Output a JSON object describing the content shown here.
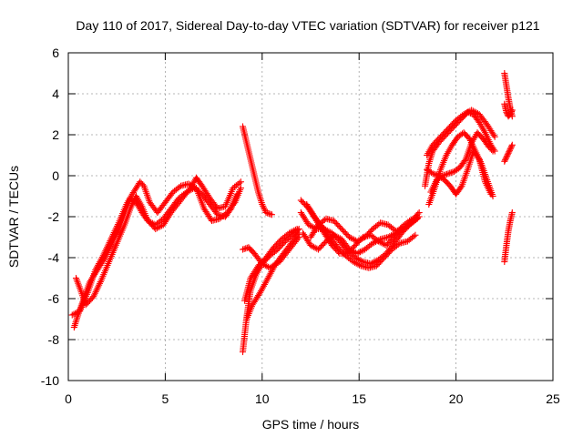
{
  "chart_data": {
    "type": "scatter",
    "title": "Day 110 of 2017, Sidereal Day-to-day VTEC variation (SDTVAR) for receiver p121",
    "xlabel": "GPS time / hours",
    "ylabel": "SDTVAR / TECUs",
    "xlim": [
      0,
      25
    ],
    "ylim": [
      -10,
      6
    ],
    "xticks": [
      "0",
      "5",
      "10",
      "15",
      "20",
      "25"
    ],
    "yticks": [
      "-10",
      "-8",
      "-6",
      "-4",
      "-2",
      "0",
      "2",
      "4",
      "6"
    ],
    "grid": true,
    "legend": "none",
    "marker": "plus",
    "color": "#ff0000",
    "series": [
      {
        "name": "",
        "tracks": [
          [
            [
              0.3,
              -7.4
            ],
            [
              0.5,
              -6.8
            ],
            [
              0.8,
              -6.0
            ],
            [
              1.1,
              -5.2
            ],
            [
              1.5,
              -4.6
            ],
            [
              1.9,
              -4.0
            ],
            [
              2.3,
              -3.2
            ],
            [
              2.7,
              -2.4
            ],
            [
              3.0,
              -1.6
            ],
            [
              3.2,
              -1.1
            ],
            [
              3.5,
              -1.3
            ],
            [
              3.8,
              -1.8
            ],
            [
              4.1,
              -2.2
            ],
            [
              4.5,
              -2.4
            ],
            [
              4.9,
              -2.1
            ],
            [
              5.3,
              -1.6
            ],
            [
              5.7,
              -1.1
            ],
            [
              6.1,
              -0.8
            ],
            [
              6.5,
              -0.6
            ],
            [
              6.9,
              -0.9
            ],
            [
              7.3,
              -1.4
            ],
            [
              7.7,
              -1.9
            ],
            [
              8.1,
              -2.0
            ],
            [
              8.4,
              -1.6
            ],
            [
              8.7,
              -0.9
            ]
          ],
          [
            [
              0.4,
              -5.0
            ],
            [
              0.6,
              -5.5
            ],
            [
              0.9,
              -6.3
            ],
            [
              1.3,
              -5.9
            ],
            [
              1.7,
              -5.1
            ],
            [
              2.1,
              -4.2
            ],
            [
              2.5,
              -3.3
            ],
            [
              2.9,
              -2.4
            ],
            [
              3.2,
              -1.6
            ],
            [
              3.5,
              -1.0
            ],
            [
              3.8,
              -1.5
            ],
            [
              4.1,
              -2.2
            ],
            [
              4.5,
              -2.6
            ],
            [
              4.9,
              -2.4
            ],
            [
              5.3,
              -1.8
            ],
            [
              5.8,
              -1.2
            ],
            [
              6.3,
              -0.6
            ],
            [
              6.6,
              -0.1
            ],
            [
              6.9,
              -0.5
            ],
            [
              7.3,
              -1.1
            ],
            [
              7.7,
              -1.6
            ],
            [
              8.1,
              -1.5
            ],
            [
              8.5,
              -0.6
            ],
            [
              8.9,
              -0.3
            ]
          ],
          [
            [
              0.2,
              -6.8
            ],
            [
              0.6,
              -6.6
            ],
            [
              1.0,
              -5.7
            ],
            [
              1.4,
              -4.6
            ],
            [
              1.8,
              -3.9
            ],
            [
              2.2,
              -3.1
            ],
            [
              2.6,
              -2.3
            ],
            [
              3.0,
              -1.4
            ],
            [
              3.3,
              -0.9
            ],
            [
              3.7,
              -0.3
            ],
            [
              3.9,
              -0.5
            ],
            [
              4.2,
              -1.3
            ],
            [
              4.6,
              -1.8
            ],
            [
              5.0,
              -1.3
            ],
            [
              5.4,
              -0.8
            ],
            [
              5.8,
              -0.5
            ],
            [
              6.2,
              -0.4
            ],
            [
              6.6,
              -0.6
            ],
            [
              7.0,
              -1.6
            ],
            [
              7.4,
              -2.2
            ],
            [
              7.8,
              -2.1
            ],
            [
              8.2,
              -1.8
            ],
            [
              8.6,
              -1.3
            ],
            [
              8.9,
              -0.6
            ]
          ],
          [
            [
              9.0,
              2.4
            ],
            [
              9.2,
              1.6
            ],
            [
              9.4,
              0.8
            ],
            [
              9.6,
              0.0
            ],
            [
              9.8,
              -0.8
            ],
            [
              10.0,
              -1.4
            ],
            [
              10.2,
              -1.8
            ],
            [
              10.5,
              -1.9
            ]
          ],
          [
            [
              9.0,
              -8.6
            ],
            [
              9.2,
              -6.9
            ],
            [
              9.4,
              -5.6
            ],
            [
              9.7,
              -4.8
            ],
            [
              10.0,
              -4.3
            ],
            [
              10.4,
              -3.9
            ],
            [
              10.8,
              -3.6
            ],
            [
              11.2,
              -3.2
            ],
            [
              11.6,
              -2.9
            ],
            [
              11.9,
              -2.6
            ]
          ],
          [
            [
              9.1,
              -6.1
            ],
            [
              9.4,
              -5.0
            ],
            [
              9.8,
              -4.4
            ],
            [
              10.2,
              -4.0
            ],
            [
              10.6,
              -3.5
            ],
            [
              11.0,
              -3.1
            ],
            [
              11.4,
              -2.8
            ],
            [
              11.8,
              -2.6
            ]
          ],
          [
            [
              9.2,
              -7.0
            ],
            [
              9.5,
              -6.3
            ],
            [
              9.9,
              -5.7
            ],
            [
              10.3,
              -5.0
            ],
            [
              10.7,
              -4.3
            ],
            [
              11.1,
              -3.8
            ],
            [
              11.5,
              -3.3
            ],
            [
              11.9,
              -2.8
            ]
          ],
          [
            [
              9.0,
              -3.6
            ],
            [
              9.3,
              -3.5
            ],
            [
              9.6,
              -3.8
            ],
            [
              10.0,
              -4.3
            ],
            [
              10.4,
              -4.5
            ],
            [
              10.9,
              -4.2
            ],
            [
              11.4,
              -3.6
            ],
            [
              11.9,
              -3.0
            ]
          ],
          [
            [
              12.0,
              -1.8
            ],
            [
              12.4,
              -2.4
            ],
            [
              12.8,
              -2.6
            ],
            [
              13.2,
              -2.6
            ],
            [
              13.6,
              -2.8
            ],
            [
              14.0,
              -3.2
            ],
            [
              14.4,
              -3.7
            ],
            [
              14.8,
              -4.0
            ],
            [
              15.2,
              -4.2
            ],
            [
              15.6,
              -4.3
            ],
            [
              16.0,
              -4.1
            ],
            [
              16.4,
              -3.8
            ],
            [
              16.8,
              -3.3
            ],
            [
              17.2,
              -2.8
            ],
            [
              17.6,
              -2.4
            ],
            [
              18.0,
              -2.1
            ]
          ],
          [
            [
              12.3,
              -1.4
            ],
            [
              12.7,
              -2.0
            ],
            [
              13.1,
              -2.5
            ],
            [
              13.5,
              -3.0
            ],
            [
              13.9,
              -3.5
            ],
            [
              14.3,
              -3.9
            ],
            [
              14.7,
              -4.2
            ],
            [
              15.1,
              -4.4
            ],
            [
              15.5,
              -4.5
            ],
            [
              15.9,
              -4.4
            ],
            [
              16.3,
              -4.0
            ],
            [
              16.7,
              -3.6
            ],
            [
              17.1,
              -3.3
            ],
            [
              17.5,
              -3.2
            ],
            [
              17.9,
              -2.9
            ]
          ],
          [
            [
              12.1,
              -2.8
            ],
            [
              12.5,
              -3.4
            ],
            [
              12.9,
              -3.6
            ],
            [
              13.3,
              -3.2
            ],
            [
              13.7,
              -2.9
            ],
            [
              14.1,
              -3.1
            ],
            [
              14.5,
              -3.6
            ],
            [
              14.9,
              -3.8
            ],
            [
              15.3,
              -3.6
            ],
            [
              15.7,
              -3.3
            ],
            [
              16.1,
              -3.1
            ],
            [
              16.5,
              -3.0
            ],
            [
              16.9,
              -2.8
            ],
            [
              17.3,
              -2.6
            ],
            [
              17.7,
              -2.3
            ],
            [
              18.1,
              -2.0
            ]
          ],
          [
            [
              12.5,
              -3.0
            ],
            [
              12.9,
              -2.4
            ],
            [
              13.3,
              -2.1
            ],
            [
              13.7,
              -2.2
            ],
            [
              14.1,
              -2.6
            ],
            [
              14.5,
              -3.0
            ],
            [
              14.9,
              -3.2
            ],
            [
              15.3,
              -3.0
            ],
            [
              15.7,
              -2.6
            ],
            [
              16.1,
              -2.3
            ],
            [
              16.5,
              -2.4
            ],
            [
              16.9,
              -2.7
            ],
            [
              17.3,
              -2.6
            ],
            [
              17.7,
              -2.2
            ],
            [
              18.1,
              -1.8
            ]
          ],
          [
            [
              12.0,
              -1.2
            ],
            [
              12.4,
              -1.6
            ],
            [
              12.8,
              -2.2
            ],
            [
              13.2,
              -2.8
            ],
            [
              13.6,
              -3.4
            ],
            [
              14.0,
              -3.8
            ],
            [
              14.4,
              -3.8
            ],
            [
              14.8,
              -3.4
            ],
            [
              15.2,
              -3.0
            ],
            [
              15.6,
              -2.9
            ],
            [
              16.0,
              -3.2
            ],
            [
              16.4,
              -3.4
            ],
            [
              16.8,
              -3.0
            ],
            [
              17.2,
              -2.5
            ],
            [
              17.6,
              -2.2
            ],
            [
              18.0,
              -2.0
            ]
          ],
          [
            [
              18.4,
              -0.5
            ],
            [
              18.6,
              0.6
            ],
            [
              18.8,
              1.2
            ],
            [
              19.1,
              1.6
            ],
            [
              19.5,
              2.0
            ],
            [
              19.9,
              2.4
            ],
            [
              20.3,
              2.8
            ],
            [
              20.6,
              3.1
            ],
            [
              20.9,
              3.0
            ],
            [
              21.2,
              2.6
            ],
            [
              21.5,
              2.1
            ],
            [
              21.8,
              1.5
            ],
            [
              22.0,
              1.2
            ]
          ],
          [
            [
              18.5,
              1.0
            ],
            [
              18.8,
              1.5
            ],
            [
              19.2,
              1.9
            ],
            [
              19.6,
              2.3
            ],
            [
              20.0,
              2.7
            ],
            [
              20.4,
              3.0
            ],
            [
              20.8,
              3.2
            ],
            [
              21.2,
              3.0
            ],
            [
              21.6,
              2.5
            ],
            [
              22.0,
              1.9
            ]
          ],
          [
            [
              18.6,
              -1.4
            ],
            [
              18.9,
              -0.6
            ],
            [
              19.2,
              0.3
            ],
            [
              19.5,
              1.0
            ],
            [
              19.8,
              1.5
            ],
            [
              20.1,
              1.9
            ],
            [
              20.4,
              2.1
            ],
            [
              20.7,
              1.8
            ],
            [
              21.0,
              1.2
            ],
            [
              21.3,
              0.6
            ],
            [
              21.6,
              -0.2
            ],
            [
              21.9,
              -1.0
            ]
          ],
          [
            [
              18.7,
              -0.8
            ],
            [
              19.0,
              -0.2
            ],
            [
              19.3,
              0.0
            ],
            [
              19.6,
              0.1
            ],
            [
              19.9,
              0.2
            ],
            [
              20.2,
              0.4
            ],
            [
              20.5,
              0.8
            ],
            [
              20.8,
              1.6
            ],
            [
              21.1,
              2.1
            ],
            [
              21.4,
              1.8
            ],
            [
              21.7,
              1.4
            ],
            [
              21.9,
              1.2
            ]
          ],
          [
            [
              18.5,
              0.3
            ],
            [
              18.8,
              0.1
            ],
            [
              19.1,
              0.0
            ],
            [
              19.4,
              -0.2
            ],
            [
              19.7,
              -0.5
            ],
            [
              20.0,
              -0.9
            ],
            [
              20.3,
              -0.5
            ],
            [
              20.6,
              0.3
            ],
            [
              20.9,
              1.2
            ],
            [
              21.2,
              0.8
            ],
            [
              21.5,
              -0.3
            ],
            [
              21.8,
              -0.9
            ]
          ],
          [
            [
              22.5,
              5.0
            ],
            [
              22.6,
              4.4
            ],
            [
              22.7,
              3.8
            ],
            [
              22.8,
              3.3
            ],
            [
              22.9,
              2.9
            ]
          ],
          [
            [
              22.5,
              3.5
            ],
            [
              22.6,
              3.1
            ],
            [
              22.7,
              2.9
            ],
            [
              22.8,
              3.0
            ],
            [
              22.9,
              3.2
            ]
          ],
          [
            [
              22.5,
              0.7
            ],
            [
              22.6,
              0.9
            ],
            [
              22.7,
              1.1
            ],
            [
              22.8,
              1.3
            ],
            [
              22.9,
              1.5
            ]
          ],
          [
            [
              22.5,
              -4.2
            ],
            [
              22.6,
              -3.4
            ],
            [
              22.7,
              -2.7
            ],
            [
              22.8,
              -2.2
            ],
            [
              22.9,
              -1.8
            ]
          ]
        ]
      }
    ]
  }
}
